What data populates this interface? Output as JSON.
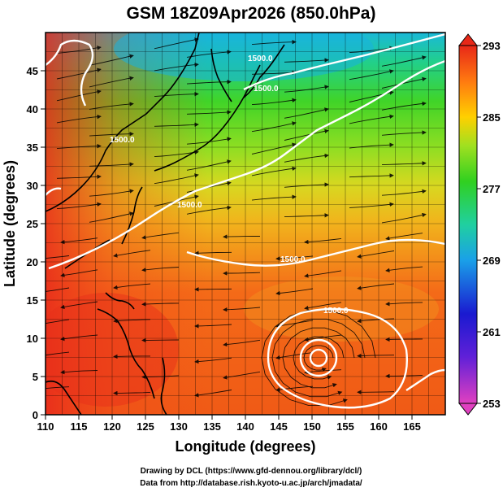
{
  "title": "GSM 18Z09Apr2026 (850.0hPa)",
  "xaxis": {
    "label": "Longitude (degrees)",
    "range": [
      110,
      170
    ],
    "ticks": [
      "110",
      "115",
      "120",
      "125",
      "130",
      "135",
      "140",
      "145",
      "150",
      "155",
      "160",
      "165"
    ]
  },
  "yaxis": {
    "label": "Latitude  (degrees)",
    "range": [
      0,
      50
    ],
    "ticks": [
      "0",
      "5",
      "10",
      "15",
      "20",
      "25",
      "30",
      "35",
      "40",
      "45"
    ]
  },
  "colorbar": {
    "range": [
      253,
      293
    ],
    "ticks": [
      "293",
      "285",
      "277",
      "269",
      "261",
      "253"
    ],
    "colors": [
      "#e040c0",
      "#1a1ad0",
      "#1aa0e8",
      "#20d0a0",
      "#30d020",
      "#a0e020",
      "#ffd000",
      "#ff7a10",
      "#e82818"
    ]
  },
  "contour_labels": [
    "1500.0",
    "1500.0",
    "1500.0",
    "1500.0",
    "1500.0",
    "1500.0"
  ],
  "credits": {
    "line1": "Drawing by DCL (https://www.gfd-dennou.org/library/dcl/)",
    "line2": "Data from http://database.rish.kyoto-u.ac.jp/arch/jmadata/"
  },
  "chart_data": {
    "type": "heatmap",
    "title": "GSM 18Z09Apr2026 (850.0hPa)",
    "xlabel": "Longitude (degrees)",
    "ylabel": "Latitude  (degrees)",
    "xlim": [
      110,
      170
    ],
    "ylim": [
      0,
      50
    ],
    "zlim": [
      253,
      293
    ],
    "grid": true,
    "overlays": [
      "streamlines",
      "geopotential height contours (white)",
      "coastlines"
    ]
  }
}
